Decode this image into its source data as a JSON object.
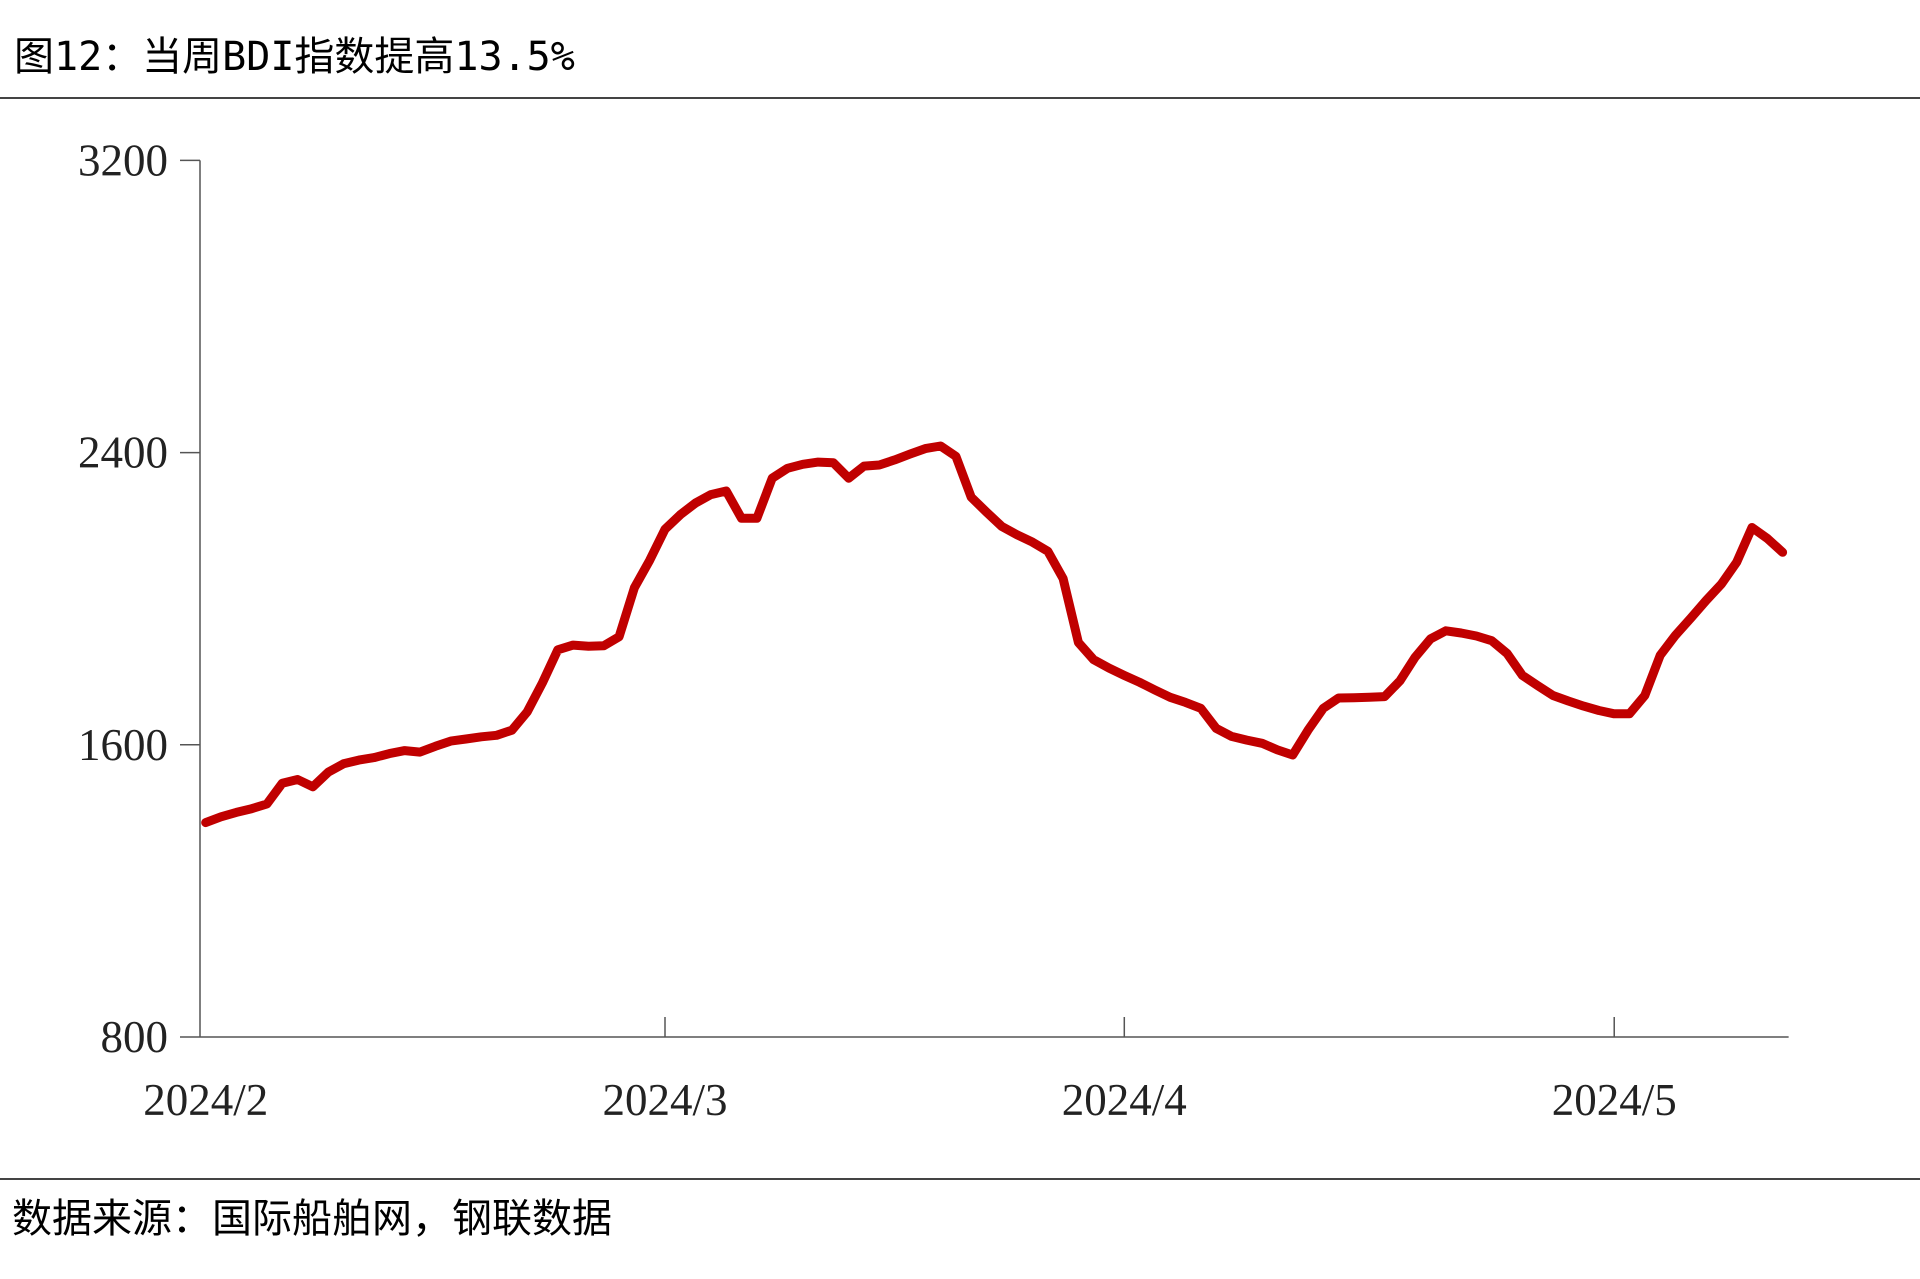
{
  "chart_data": {
    "type": "line",
    "title": "图12：当周BDI指数提高13.5%",
    "source": "数据来源：国际船舶网，钢联数据",
    "categories": [
      "2024/2",
      null,
      null,
      null,
      null,
      null,
      null,
      null,
      null,
      null,
      null,
      null,
      null,
      null,
      null,
      null,
      null,
      null,
      null,
      null,
      null,
      null,
      null,
      null,
      null,
      null,
      null,
      null,
      null,
      null,
      "2024/3",
      null,
      null,
      null,
      null,
      null,
      null,
      null,
      null,
      null,
      null,
      null,
      null,
      null,
      null,
      null,
      null,
      null,
      null,
      null,
      null,
      null,
      null,
      null,
      null,
      null,
      null,
      null,
      null,
      null,
      "2024/4",
      null,
      null,
      null,
      null,
      null,
      null,
      null,
      null,
      null,
      null,
      null,
      null,
      null,
      null,
      null,
      null,
      null,
      null,
      null,
      null,
      null,
      null,
      null,
      null,
      null,
      null,
      null,
      null,
      null,
      null,
      null,
      "2024/5",
      null,
      null,
      null,
      null,
      null,
      null,
      null,
      null,
      null,
      null,
      null
    ],
    "values": [
      1387,
      1403,
      1415,
      1425,
      1438,
      1495,
      1505,
      1485,
      1525,
      1548,
      1558,
      1565,
      1576,
      1584,
      1580,
      1596,
      1610,
      1616,
      1622,
      1626,
      1640,
      1690,
      1770,
      1860,
      1873,
      1870,
      1871,
      1896,
      2030,
      2105,
      2190,
      2230,
      2262,
      2285,
      2295,
      2220,
      2220,
      2330,
      2357,
      2368,
      2374,
      2372,
      2330,
      2363,
      2366,
      2380,
      2396,
      2411,
      2418,
      2390,
      2278,
      2237,
      2198,
      2175,
      2155,
      2130,
      2055,
      1880,
      1833,
      1810,
      1790,
      1771,
      1750,
      1730,
      1716,
      1700,
      1645,
      1623,
      1613,
      1604,
      1586,
      1572,
      1640,
      1700,
      1728,
      1729,
      1730,
      1732,
      1775,
      1840,
      1890,
      1912,
      1906,
      1898,
      1885,
      1850,
      1790,
      1762,
      1735,
      1720,
      1706,
      1694,
      1685,
      1685,
      1735,
      1845,
      1900,
      1947,
      1995,
      2040,
      2100,
      2195,
      2165,
      2127
    ],
    "color": "#c00000",
    "ylim": [
      800,
      3200
    ],
    "yticks": [
      800,
      1600,
      2400,
      3200
    ]
  }
}
